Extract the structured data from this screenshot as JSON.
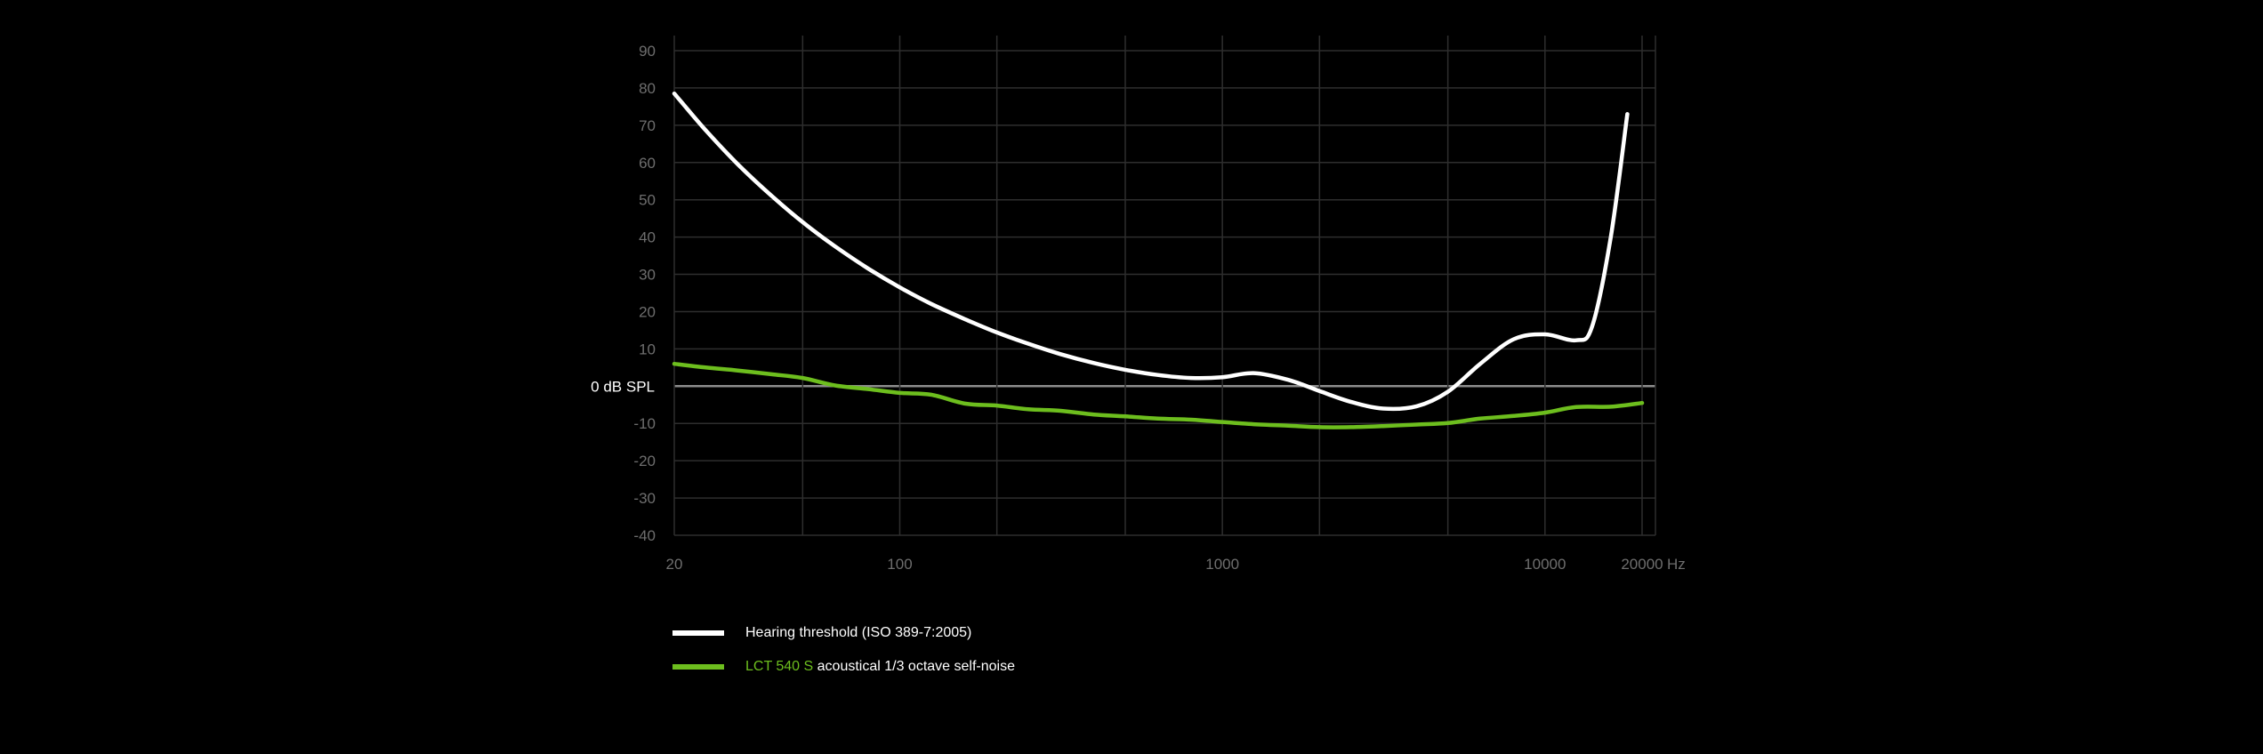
{
  "colors": {
    "background": "#000000",
    "grid": "#2e2e2e",
    "zero_line": "#8c8c8c",
    "threshold": "#ffffff",
    "self_noise": "#6dbe1e",
    "tick_text": "#6e6e6e"
  },
  "chart_data": {
    "type": "line",
    "x_scale": "log",
    "xlim": [
      20,
      22000
    ],
    "ylim": [
      -40,
      90
    ],
    "y_ticks": [
      -40,
      -30,
      -20,
      -10,
      0,
      10,
      20,
      30,
      40,
      50,
      60,
      70,
      80,
      90
    ],
    "y_tick_labels": [
      "-40",
      "-30",
      "-20",
      "-10",
      "0 dB SPL",
      "10",
      "20",
      "30",
      "40",
      "50",
      "60",
      "70",
      "80",
      "90"
    ],
    "x_ticks": [
      20,
      100,
      1000,
      10000,
      20000
    ],
    "x_tick_labels": [
      "20",
      "100",
      "1000",
      "10000",
      "20000"
    ],
    "x_unit_label": "Hz",
    "x_gridlines": [
      20,
      50,
      100,
      200,
      500,
      1000,
      2000,
      5000,
      10000,
      20000
    ],
    "grid": true,
    "series": [
      {
        "name": "Hearing threshold (ISO 389-7:2005)",
        "color": "#ffffff",
        "x": [
          20,
          25,
          31.5,
          40,
          50,
          63,
          80,
          100,
          125,
          160,
          200,
          250,
          315,
          400,
          500,
          630,
          800,
          1000,
          1250,
          1600,
          2000,
          2500,
          3150,
          4000,
          5000,
          6300,
          8000,
          10000,
          12500,
          14000,
          16000,
          18000
        ],
        "y": [
          78.5,
          68.7,
          59.5,
          51.1,
          44.0,
          37.5,
          31.5,
          26.5,
          22.1,
          17.9,
          14.4,
          11.4,
          8.6,
          6.2,
          4.4,
          3.0,
          2.2,
          2.4,
          3.5,
          1.7,
          -1.3,
          -4.2,
          -6.0,
          -5.4,
          -1.5,
          6.0,
          12.6,
          13.9,
          12.3,
          16.0,
          40.0,
          73.0
        ]
      },
      {
        "name": "LCT 540 S acoustical 1/3 octave self-noise",
        "color": "#6dbe1e",
        "x": [
          20,
          25,
          31.5,
          40,
          50,
          63,
          80,
          100,
          125,
          160,
          200,
          250,
          315,
          400,
          500,
          630,
          800,
          1000,
          1250,
          1600,
          2000,
          2500,
          3150,
          4000,
          5000,
          6300,
          8000,
          10000,
          12500,
          16000,
          20000
        ],
        "y": [
          6.0,
          5.0,
          4.2,
          3.2,
          2.2,
          0.2,
          -0.8,
          -1.8,
          -2.3,
          -4.7,
          -5.2,
          -6.2,
          -6.6,
          -7.6,
          -8.1,
          -8.7,
          -9.0,
          -9.6,
          -10.2,
          -10.6,
          -11.0,
          -11.0,
          -10.7,
          -10.3,
          -9.9,
          -8.7,
          -8.0,
          -7.1,
          -5.6,
          -5.5,
          -4.5
        ]
      }
    ]
  },
  "legend": [
    {
      "prefix": "",
      "text": "Hearing threshold (ISO 389-7:2005)"
    },
    {
      "prefix": "LCT 540 S",
      "text": " acoustical 1/3 octave self-noise"
    }
  ]
}
